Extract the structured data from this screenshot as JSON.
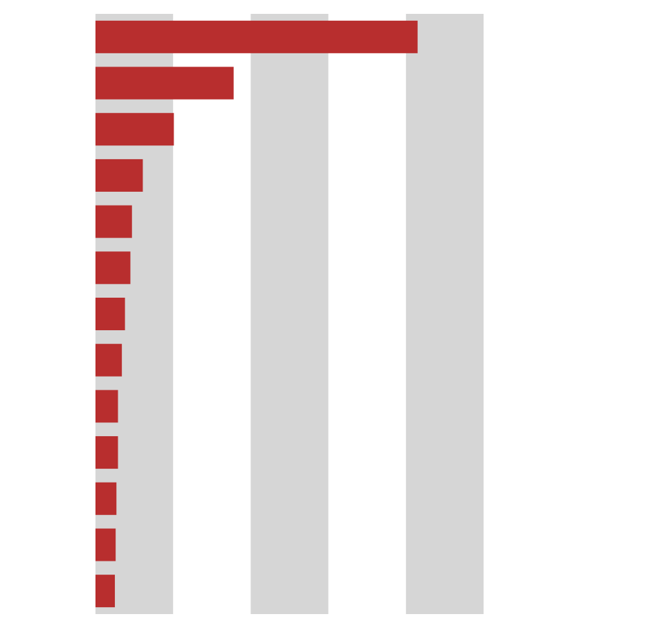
{
  "chart_data": {
    "type": "bar",
    "orientation": "horizontal",
    "categories": [
      null,
      null,
      null,
      null,
      null,
      null,
      null,
      null,
      null,
      null,
      null,
      null,
      null
    ],
    "values": [
      4.15,
      1.78,
      1.01,
      0.61,
      0.47,
      0.45,
      0.38,
      0.34,
      0.29,
      0.29,
      0.27,
      0.26,
      0.25
    ],
    "color": "#b82e2e",
    "xlim": [
      0,
      5
    ],
    "xticks": [
      0,
      1,
      2,
      3,
      4,
      5
    ],
    "grid": "bands",
    "band_color": "#d6d6d6"
  }
}
